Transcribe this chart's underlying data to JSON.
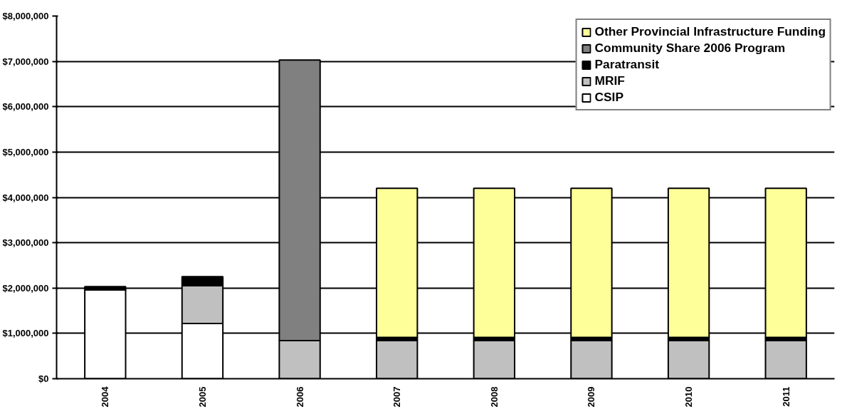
{
  "chart_data": {
    "type": "bar",
    "stacked": true,
    "categories": [
      "2004",
      "2005",
      "2006",
      "2007",
      "2008",
      "2009",
      "2010",
      "2011"
    ],
    "series": [
      {
        "name": "CSIP",
        "color": "#ffffff",
        "values": [
          1960000,
          1220000,
          0,
          0,
          0,
          0,
          0,
          0
        ]
      },
      {
        "name": "MRIF",
        "color": "#c0c0c0",
        "values": [
          0,
          830000,
          840000,
          840000,
          840000,
          840000,
          840000,
          840000
        ]
      },
      {
        "name": "Paratransit",
        "color": "#000000",
        "values": [
          70000,
          200000,
          0,
          70000,
          70000,
          70000,
          70000,
          70000
        ]
      },
      {
        "name": "Community Share 2006 Program",
        "color": "#808080",
        "values": [
          0,
          0,
          6190000,
          0,
          0,
          0,
          0,
          0
        ]
      },
      {
        "name": "Other Provincial Infrastructure Funding",
        "color": "#ffff99",
        "values": [
          0,
          0,
          0,
          3290000,
          3290000,
          3290000,
          3290000,
          3290000
        ]
      }
    ],
    "ylim": [
      0,
      8000000
    ],
    "yticks": [
      {
        "value": 0,
        "label": "$0"
      },
      {
        "value": 1000000,
        "label": "$1,000,000"
      },
      {
        "value": 2000000,
        "label": "$2,000,000"
      },
      {
        "value": 3000000,
        "label": "$3,000,000"
      },
      {
        "value": 4000000,
        "label": "$4,000,000"
      },
      {
        "value": 5000000,
        "label": "$5,000,000"
      },
      {
        "value": 6000000,
        "label": "$6,000,000"
      },
      {
        "value": 7000000,
        "label": "$7,000,000"
      },
      {
        "value": 8000000,
        "label": "$8,000,000"
      }
    ],
    "grid": "y",
    "legend": "top right"
  }
}
